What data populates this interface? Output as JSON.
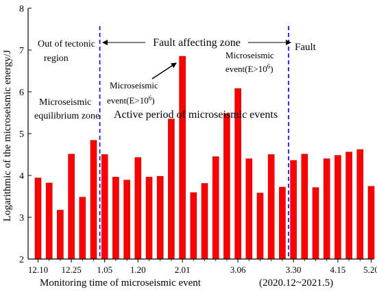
{
  "chart_data": {
    "type": "bar",
    "ylabel": "Logarithmic of the microseismic energy/J",
    "xlabel": "Monitoring time of microseismic event",
    "xlabel_note": "(2020.12~2021.5)",
    "ylim": [
      2,
      8
    ],
    "yticks": [
      2,
      3,
      4,
      5,
      6,
      7,
      8
    ],
    "bar_color": "#ff0000",
    "bar_edge_color": "#b00000",
    "boundary_color": "#1a1aff",
    "values": [
      3.94,
      3.82,
      3.17,
      4.51,
      3.48,
      4.84,
      4.5,
      3.96,
      3.89,
      4.43,
      3.96,
      3.98,
      5.35,
      6.85,
      3.59,
      3.81,
      4.45,
      5.48,
      6.08,
      4.4,
      3.58,
      4.5,
      3.72,
      4.36,
      4.51,
      3.71,
      4.4,
      4.48,
      4.56,
      4.62,
      3.74
    ],
    "xtick_labels": [
      {
        "label": "12.10",
        "bar": 0
      },
      {
        "label": "12.25",
        "bar": 3
      },
      {
        "label": "1.05",
        "bar": 6
      },
      {
        "label": "1.20",
        "bar": 9
      },
      {
        "label": "2.01",
        "bar": 13
      },
      {
        "label": "3.06",
        "bar": 18
      },
      {
        "label": "3.30",
        "bar": 23
      },
      {
        "label": "4.15",
        "bar": 27
      },
      {
        "label": "5.20",
        "bar": 30
      }
    ],
    "boundaries": [
      {
        "after_bar": 6
      },
      {
        "after_bar": 23
      }
    ]
  },
  "annotations": {
    "out_of_tectonic_1": "Out of tectonic",
    "out_of_tectonic_2": "region",
    "fault_affecting_zone": "Fault affecting zone",
    "fault": "Fault",
    "equilibrium_1": "Microseismic",
    "equilibrium_2": "equilibrium zone",
    "active_period": "Active period of microseismic events",
    "event_left_1": "Microseismic",
    "event_left_2": "event(E>10",
    "event_left_exp": "6",
    "event_right_1": "Microseismic",
    "event_right_2": "event(E>10",
    "event_right_exp": "6",
    "close_paren": ")"
  }
}
